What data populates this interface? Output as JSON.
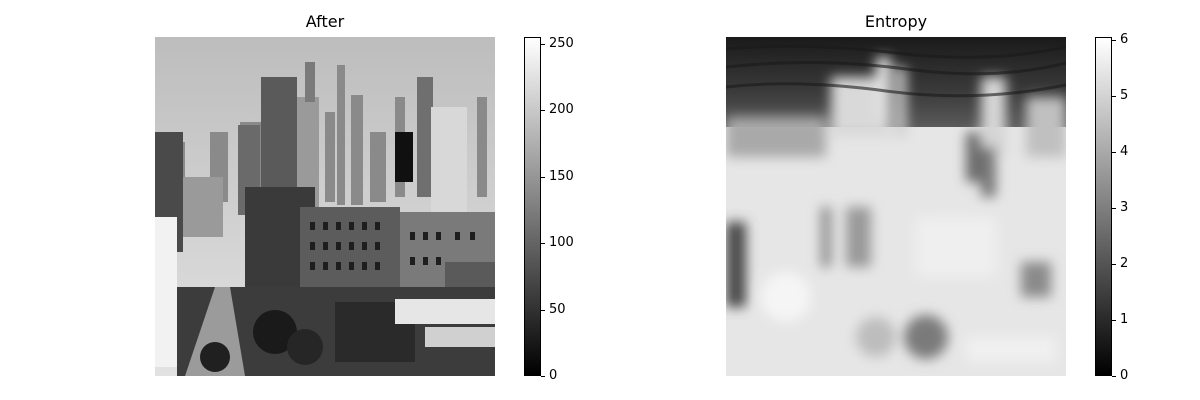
{
  "chart_data": [
    {
      "type": "heatmap",
      "title": "After",
      "colormap": "gray",
      "colorbar": {
        "range": [
          0,
          255
        ],
        "ticks": [
          0,
          50,
          100,
          150,
          200,
          250
        ],
        "tick_labels": [
          "0",
          "50",
          "100",
          "150",
          "200",
          "250"
        ]
      },
      "axes_visible": false,
      "content": "grayscale city skyline photograph"
    },
    {
      "type": "heatmap",
      "title": "Entropy",
      "colormap": "gray",
      "colorbar": {
        "range": [
          0,
          6.05
        ],
        "ticks": [
          0,
          1,
          2,
          3,
          4,
          5,
          6
        ],
        "tick_labels": [
          "0",
          "1",
          "2",
          "3",
          "4",
          "5",
          "6"
        ]
      },
      "axes_visible": false,
      "content": "local entropy map of the skyline image"
    }
  ]
}
